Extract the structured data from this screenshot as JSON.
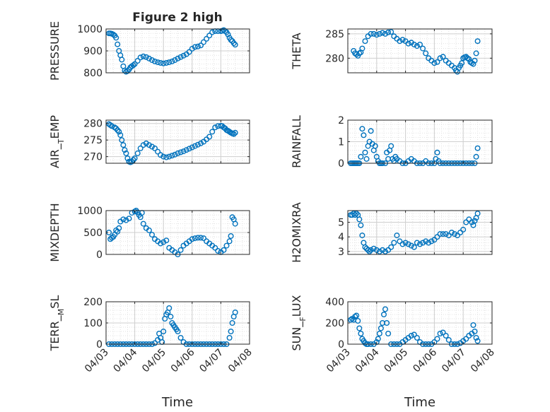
{
  "figure": {
    "title": "Figure 2 high"
  },
  "colors": {
    "marker": "#0072BD",
    "grid": "#cfcfcf",
    "minor_grid": "#e2e2e2",
    "axis": "#262626"
  },
  "x_tick_labels": [
    "04/03",
    "04/04",
    "04/05",
    "04/06",
    "04/07",
    "04/08"
  ],
  "x_label": "Time",
  "chart_data": [
    {
      "type": "scatter",
      "name": "pressure",
      "ylabel": "PRESSURE",
      "xlim": [
        0,
        5
      ],
      "ylim": [
        800,
        1000
      ],
      "yticks": [
        800,
        900,
        1000
      ],
      "x": [
        0.1,
        0.15,
        0.2,
        0.25,
        0.3,
        0.35,
        0.4,
        0.45,
        0.5,
        0.55,
        0.6,
        0.65,
        0.7,
        0.75,
        0.8,
        0.85,
        0.9,
        0.95,
        1.0,
        1.1,
        1.2,
        1.3,
        1.4,
        1.5,
        1.6,
        1.7,
        1.8,
        1.9,
        2.0,
        2.1,
        2.2,
        2.3,
        2.4,
        2.5,
        2.6,
        2.7,
        2.8,
        2.9,
        3.0,
        3.1,
        3.2,
        3.3,
        3.4,
        3.5,
        3.6,
        3.7,
        3.8,
        3.9,
        4.0,
        4.05,
        4.1,
        4.15,
        4.2,
        4.25,
        4.3,
        4.35,
        4.4,
        4.45,
        4.5
      ],
      "y": [
        980,
        980,
        978,
        975,
        970,
        960,
        930,
        900,
        880,
        860,
        830,
        810,
        805,
        808,
        815,
        825,
        830,
        835,
        840,
        855,
        870,
        875,
        872,
        865,
        858,
        852,
        848,
        845,
        843,
        845,
        848,
        852,
        858,
        865,
        872,
        878,
        885,
        895,
        910,
        918,
        920,
        925,
        940,
        955,
        970,
        985,
        990,
        990,
        990,
        992,
        995,
        990,
        985,
        975,
        960,
        950,
        945,
        935,
        928
      ]
    },
    {
      "type": "scatter",
      "name": "theta",
      "ylabel": "THETA",
      "xlim": [
        0,
        5
      ],
      "ylim": [
        277,
        286
      ],
      "yticks": [
        280,
        285
      ],
      "x": [
        0.2,
        0.25,
        0.3,
        0.35,
        0.4,
        0.45,
        0.5,
        0.6,
        0.7,
        0.8,
        0.9,
        1.0,
        1.1,
        1.2,
        1.3,
        1.4,
        1.5,
        1.6,
        1.7,
        1.8,
        1.9,
        2.0,
        2.1,
        2.2,
        2.3,
        2.4,
        2.5,
        2.6,
        2.7,
        2.8,
        2.9,
        3.0,
        3.1,
        3.2,
        3.3,
        3.4,
        3.5,
        3.6,
        3.7,
        3.75,
        3.8,
        3.85,
        3.9,
        3.95,
        4.0,
        4.05,
        4.1,
        4.15,
        4.2,
        4.25,
        4.3,
        4.35,
        4.4,
        4.45,
        4.5
      ],
      "y": [
        281.5,
        281,
        280.8,
        280.5,
        281,
        281.2,
        282,
        283.5,
        284.5,
        285,
        285,
        284.8,
        285,
        285.2,
        285,
        285.3,
        285.4,
        284.5,
        284,
        283.5,
        283.8,
        283.5,
        283,
        283.2,
        282.8,
        282.5,
        282.8,
        282,
        281,
        280,
        279.5,
        279,
        279.2,
        280,
        280.3,
        279.5,
        279,
        278.5,
        278,
        277.5,
        277.2,
        278,
        278.5,
        279,
        280,
        280.2,
        280.3,
        280,
        279.8,
        279.2,
        279,
        278.8,
        279.5,
        281,
        283.5
      ]
    },
    {
      "type": "scatter",
      "name": "air_temp",
      "ylabel": "AIR_TEMP",
      "xlim": [
        0,
        5
      ],
      "ylim": [
        268,
        281
      ],
      "yticks": [
        270,
        275,
        280
      ],
      "x": [
        0.1,
        0.15,
        0.2,
        0.3,
        0.35,
        0.4,
        0.45,
        0.5,
        0.55,
        0.6,
        0.65,
        0.7,
        0.75,
        0.8,
        0.85,
        0.9,
        0.95,
        1.0,
        1.1,
        1.2,
        1.3,
        1.4,
        1.5,
        1.6,
        1.7,
        1.8,
        1.9,
        2.0,
        2.1,
        2.2,
        2.3,
        2.4,
        2.5,
        2.6,
        2.7,
        2.8,
        2.9,
        3.0,
        3.1,
        3.2,
        3.3,
        3.4,
        3.5,
        3.6,
        3.7,
        3.8,
        3.9,
        4.0,
        4.05,
        4.1,
        4.15,
        4.2,
        4.25,
        4.3,
        4.35,
        4.4,
        4.45,
        4.5
      ],
      "y": [
        279.8,
        279.5,
        279.2,
        278.8,
        278.5,
        278,
        277.5,
        276.5,
        275,
        273.5,
        272,
        271,
        269.5,
        268.5,
        268.3,
        268.5,
        269,
        269.5,
        271,
        272.5,
        273.5,
        274,
        273.5,
        273,
        272.5,
        271.5,
        270.5,
        270,
        269.8,
        270,
        270.3,
        270.6,
        271,
        271.3,
        271.6,
        272,
        272.4,
        272.8,
        273.2,
        273.6,
        274,
        274.5,
        275.2,
        276,
        277.5,
        278.8,
        279.2,
        279.3,
        279.2,
        278.8,
        278.5,
        278,
        277.8,
        277.5,
        277.2,
        277,
        276.8,
        277.2
      ]
    },
    {
      "type": "scatter",
      "name": "rainfall",
      "ylabel": "RAINFALL",
      "xlim": [
        0,
        5
      ],
      "ylim": [
        0,
        2
      ],
      "yticks": [
        0,
        1,
        2
      ],
      "x": [
        0.1,
        0.15,
        0.2,
        0.25,
        0.3,
        0.35,
        0.4,
        0.45,
        0.5,
        0.55,
        0.6,
        0.65,
        0.7,
        0.75,
        0.8,
        0.85,
        0.9,
        0.95,
        1.0,
        1.05,
        1.1,
        1.15,
        1.2,
        1.3,
        1.35,
        1.4,
        1.45,
        1.5,
        1.55,
        1.6,
        1.65,
        1.7,
        1.8,
        1.9,
        2.0,
        2.1,
        2.2,
        2.3,
        2.4,
        2.5,
        2.6,
        2.7,
        2.8,
        2.9,
        3.0,
        3.05,
        3.1,
        3.15,
        3.2,
        3.3,
        3.4,
        3.5,
        3.6,
        3.7,
        3.8,
        3.9,
        4.0,
        4.1,
        4.2,
        4.3,
        4.4,
        4.45,
        4.5
      ],
      "y": [
        0,
        0,
        0,
        0,
        0,
        0,
        0,
        0.3,
        1.6,
        1.3,
        0.5,
        0.2,
        0.8,
        1.0,
        1.5,
        0.9,
        0.6,
        0.8,
        0.3,
        0.1,
        0,
        0,
        0,
        0,
        0.5,
        0.2,
        0.6,
        0.8,
        0.2,
        0.1,
        0.3,
        0.2,
        0.1,
        0,
        0,
        0.1,
        0.2,
        0.1,
        0,
        0,
        0,
        0.1,
        0,
        0,
        0,
        0.2,
        0.5,
        0.1,
        0,
        0,
        0,
        0,
        0,
        0,
        0,
        0,
        0,
        0,
        0,
        0,
        0,
        0.3,
        0.7
      ]
    },
    {
      "type": "scatter",
      "name": "mixdepth",
      "ylabel": "MIXDEPTH",
      "xlim": [
        0,
        5
      ],
      "ylim": [
        0,
        1000
      ],
      "yticks": [
        0,
        500,
        1000
      ],
      "x": [
        0.1,
        0.15,
        0.2,
        0.25,
        0.3,
        0.35,
        0.4,
        0.45,
        0.5,
        0.6,
        0.7,
        0.8,
        0.9,
        1.0,
        1.05,
        1.1,
        1.15,
        1.2,
        1.25,
        1.3,
        1.4,
        1.5,
        1.6,
        1.7,
        1.8,
        1.9,
        2.0,
        2.1,
        2.2,
        2.3,
        2.4,
        2.5,
        2.6,
        2.7,
        2.8,
        2.9,
        3.0,
        3.1,
        3.2,
        3.3,
        3.4,
        3.5,
        3.6,
        3.7,
        3.8,
        3.9,
        4.0,
        4.1,
        4.2,
        4.3,
        4.35,
        4.4,
        4.45,
        4.5
      ],
      "y": [
        500,
        350,
        380,
        400,
        450,
        550,
        520,
        600,
        750,
        800,
        780,
        820,
        950,
        980,
        1000,
        960,
        900,
        850,
        950,
        700,
        600,
        550,
        450,
        350,
        300,
        250,
        280,
        320,
        150,
        100,
        50,
        0,
        100,
        200,
        250,
        300,
        350,
        370,
        380,
        380,
        370,
        300,
        250,
        200,
        150,
        80,
        50,
        100,
        200,
        300,
        420,
        850,
        800,
        700
      ]
    },
    {
      "type": "scatter",
      "name": "h2omixra",
      "ylabel": "H2OMIXRA",
      "xlim": [
        0,
        5
      ],
      "ylim": [
        2.8,
        5.8
      ],
      "yticks": [
        3,
        4,
        5
      ],
      "x": [
        0.1,
        0.15,
        0.2,
        0.25,
        0.3,
        0.35,
        0.4,
        0.45,
        0.5,
        0.55,
        0.6,
        0.65,
        0.7,
        0.75,
        0.8,
        0.9,
        1.0,
        1.1,
        1.2,
        1.3,
        1.4,
        1.5,
        1.6,
        1.7,
        1.8,
        1.9,
        2.0,
        2.1,
        2.2,
        2.3,
        2.4,
        2.5,
        2.6,
        2.7,
        2.8,
        2.9,
        3.0,
        3.1,
        3.2,
        3.3,
        3.4,
        3.5,
        3.6,
        3.7,
        3.8,
        3.9,
        4.0,
        4.1,
        4.2,
        4.3,
        4.35,
        4.4,
        4.45,
        4.5
      ],
      "y": [
        5.5,
        5.5,
        5.6,
        5.5,
        5.6,
        5.5,
        5.2,
        4.8,
        4.1,
        3.6,
        3.3,
        3.2,
        3.1,
        3.0,
        3.1,
        3.2,
        3.1,
        3.0,
        3.1,
        3.0,
        3.1,
        3.3,
        3.6,
        4.1,
        3.7,
        3.5,
        3.6,
        3.5,
        3.4,
        3.3,
        3.6,
        3.5,
        3.6,
        3.7,
        3.6,
        3.7,
        3.8,
        4.0,
        4.2,
        4.2,
        4.2,
        4.1,
        4.3,
        4.2,
        4.1,
        4.3,
        4.5,
        5.0,
        5.2,
        5.0,
        4.8,
        5.1,
        5.3,
        5.6
      ]
    },
    {
      "type": "scatter",
      "name": "terr_msl",
      "ylabel": "TERR_MSL",
      "xlim": [
        0,
        5
      ],
      "ylim": [
        0,
        200
      ],
      "yticks": [
        0,
        100,
        200
      ],
      "x": [
        0.1,
        0.2,
        0.3,
        0.4,
        0.5,
        0.6,
        0.7,
        0.8,
        0.9,
        1.0,
        1.1,
        1.2,
        1.3,
        1.4,
        1.5,
        1.6,
        1.7,
        1.8,
        1.85,
        1.9,
        1.95,
        2.0,
        2.05,
        2.1,
        2.15,
        2.2,
        2.25,
        2.3,
        2.35,
        2.4,
        2.45,
        2.5,
        2.6,
        2.7,
        2.8,
        2.9,
        3.0,
        3.1,
        3.2,
        3.3,
        3.4,
        3.5,
        3.6,
        3.7,
        3.8,
        3.9,
        4.0,
        4.1,
        4.2,
        4.3,
        4.35,
        4.4,
        4.45,
        4.5
      ],
      "y": [
        0,
        0,
        0,
        0,
        0,
        0,
        0,
        0,
        0,
        0,
        0,
        0,
        0,
        0,
        0,
        0,
        5,
        20,
        50,
        30,
        10,
        60,
        120,
        140,
        150,
        170,
        130,
        100,
        90,
        80,
        70,
        60,
        30,
        10,
        0,
        0,
        0,
        0,
        0,
        0,
        0,
        0,
        0,
        0,
        0,
        0,
        0,
        0,
        0,
        30,
        60,
        100,
        130,
        150
      ]
    },
    {
      "type": "scatter",
      "name": "sun_flux",
      "ylabel": "SUN_FLUX",
      "xlim": [
        0,
        5
      ],
      "ylim": [
        0,
        400
      ],
      "yticks": [
        0,
        200,
        400
      ],
      "x": [
        0.1,
        0.15,
        0.2,
        0.25,
        0.3,
        0.35,
        0.4,
        0.45,
        0.5,
        0.55,
        0.6,
        0.65,
        0.7,
        0.8,
        0.9,
        1.0,
        1.05,
        1.1,
        1.15,
        1.2,
        1.25,
        1.3,
        1.35,
        1.4,
        1.5,
        1.6,
        1.7,
        1.8,
        1.9,
        2.0,
        2.1,
        2.2,
        2.3,
        2.4,
        2.5,
        2.6,
        2.7,
        2.8,
        2.9,
        3.0,
        3.1,
        3.2,
        3.3,
        3.4,
        3.5,
        3.6,
        3.7,
        3.8,
        3.9,
        4.0,
        4.1,
        4.2,
        4.3,
        4.35,
        4.4,
        4.45,
        4.5
      ],
      "y": [
        230,
        240,
        230,
        260,
        270,
        220,
        150,
        100,
        50,
        30,
        10,
        0,
        0,
        0,
        0,
        20,
        50,
        100,
        150,
        200,
        280,
        330,
        200,
        100,
        0,
        0,
        0,
        0,
        20,
        40,
        60,
        80,
        90,
        60,
        20,
        0,
        0,
        0,
        0,
        20,
        50,
        100,
        110,
        80,
        40,
        0,
        0,
        0,
        10,
        30,
        50,
        80,
        100,
        180,
        120,
        60,
        30
      ]
    }
  ]
}
